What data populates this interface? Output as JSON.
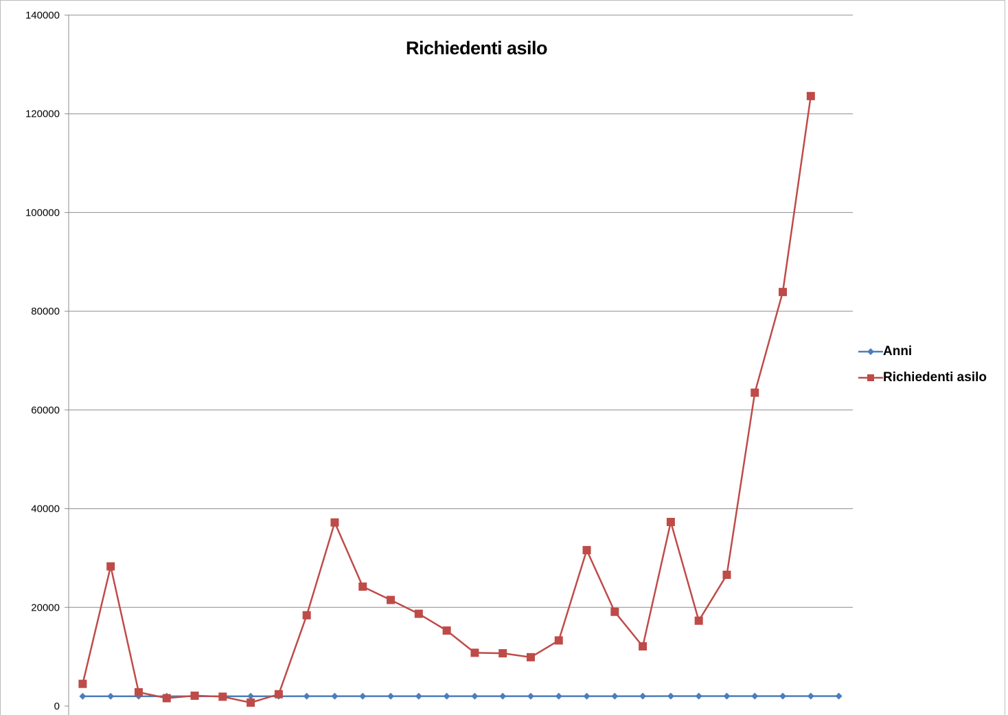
{
  "chart_data": {
    "type": "line",
    "title": "Richiedenti asilo",
    "xlabel": "",
    "ylabel": "",
    "ylim": [
      0,
      140000
    ],
    "yticks": [
      0,
      20000,
      40000,
      60000,
      80000,
      100000,
      120000,
      140000
    ],
    "ytick_labels": [
      "0",
      "20000",
      "40000",
      "60000",
      "80000",
      "100000",
      "120000",
      "140000"
    ],
    "grid": true,
    "legend_position": "right",
    "series": [
      {
        "name": "Anni",
        "color": "#4a7ebb",
        "marker": "diamond",
        "values": [
          1990,
          1991,
          1992,
          1993,
          1994,
          1995,
          1996,
          1997,
          1998,
          1999,
          2000,
          2001,
          2002,
          2003,
          2004,
          2005,
          2006,
          2007,
          2008,
          2009,
          2010,
          2011,
          2012,
          2013,
          2014,
          2015,
          2016,
          2017
        ]
      },
      {
        "name": "Richiedenti asilo",
        "color": "#be4b48",
        "marker": "square",
        "values": [
          4500,
          28300,
          2800,
          1600,
          2100,
          1900,
          700,
          2400,
          18400,
          37200,
          24200,
          21500,
          18700,
          15300,
          10800,
          10700,
          9900,
          13300,
          31600,
          19100,
          12100,
          37300,
          17300,
          26600,
          63500,
          83900,
          123600,
          null
        ]
      }
    ]
  }
}
